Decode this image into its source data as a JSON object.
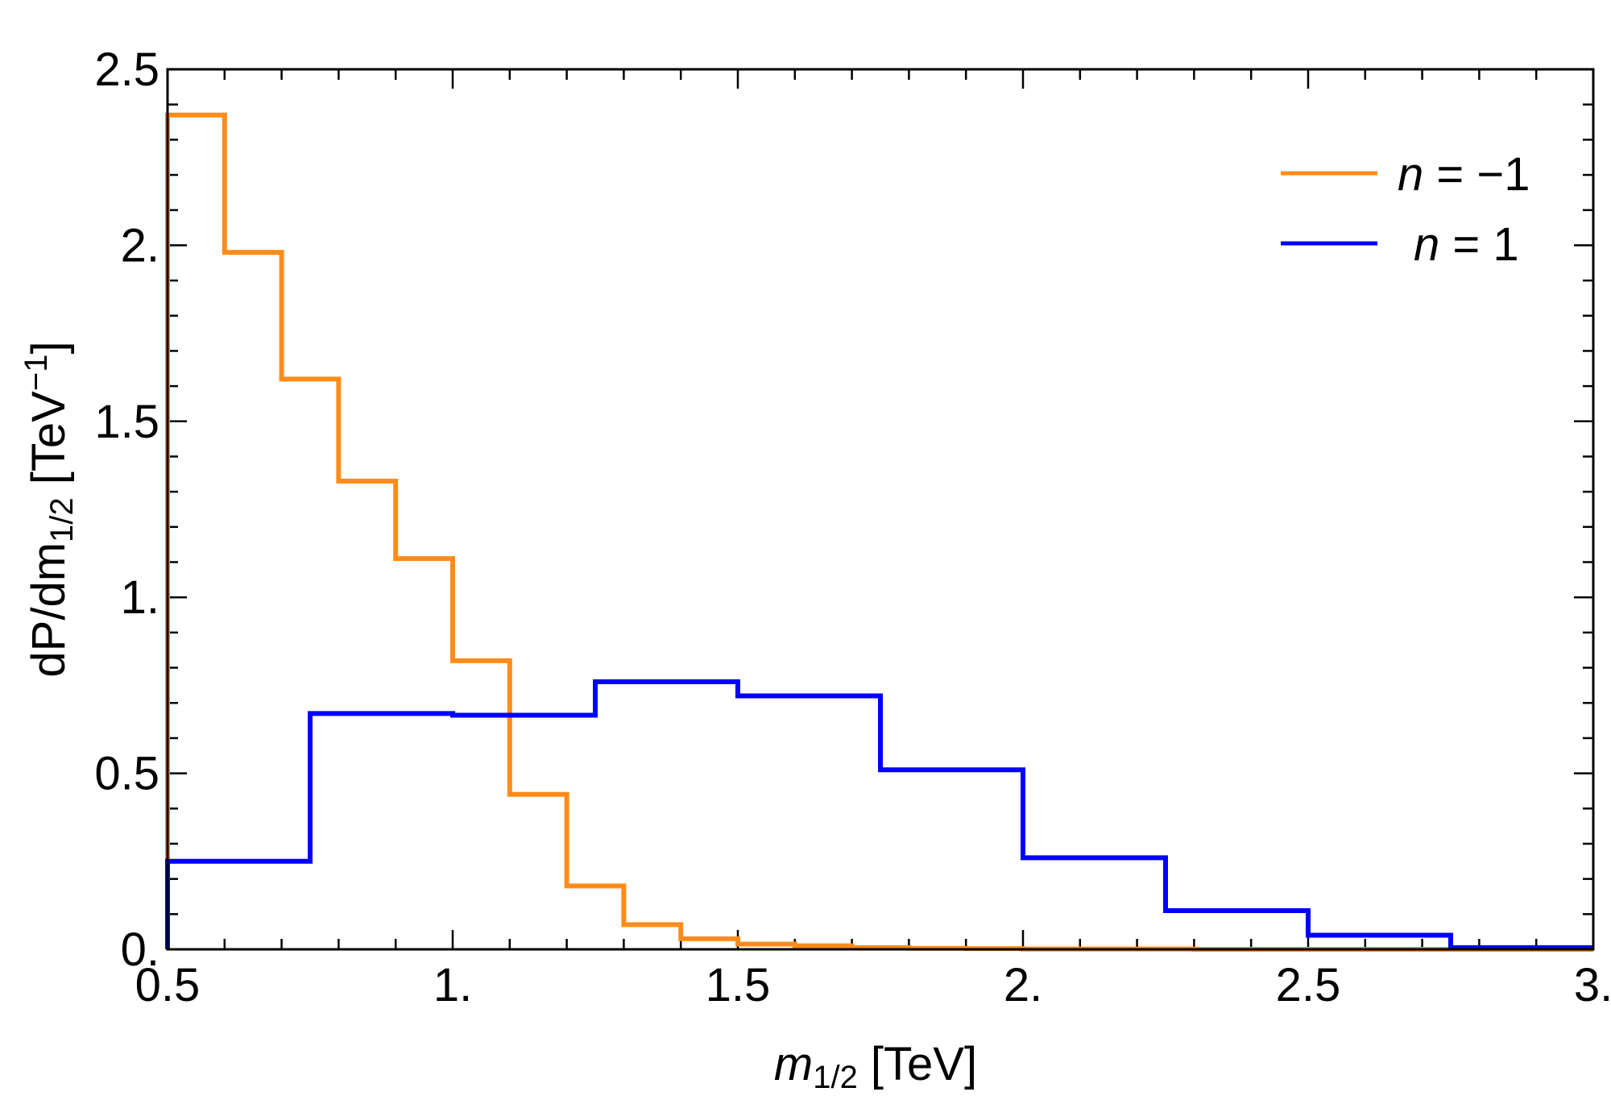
{
  "chart_data": {
    "type": "histogram",
    "xlabel": {
      "main": "m",
      "sub": "1/2",
      "suffix": " [TeV]"
    },
    "ylabel": {
      "prefix": "dP/dm",
      "sub": "1/2",
      "suffix1": " [TeV",
      "sup": "−1",
      "suffix2": "]"
    },
    "xlim": [
      0.5,
      3.0
    ],
    "ylim": [
      0,
      2.5
    ],
    "x_ticks": [
      0.5,
      1.0,
      1.5,
      2.0,
      2.5,
      3.0
    ],
    "x_tick_labels": [
      "0.5",
      "1.",
      "1.5",
      "2.",
      "2.5",
      "3."
    ],
    "y_ticks": [
      0,
      0.5,
      1.0,
      1.5,
      2.0,
      2.5
    ],
    "y_tick_labels": [
      "0.",
      "0.5",
      "1.",
      "1.5",
      "2.",
      "2.5"
    ],
    "legend_position": "top-right",
    "series": [
      {
        "name": "n = −1",
        "legend_var": "n",
        "legend_rest": " = −1",
        "color": "#ff8c1a",
        "bin_edges": [
          0.5,
          0.6,
          0.7,
          0.8,
          0.9,
          1.0,
          1.1,
          1.2,
          1.3,
          1.4,
          1.5,
          1.6,
          1.7,
          1.8,
          1.9,
          2.0,
          2.1,
          2.2,
          2.3,
          2.4,
          2.5,
          2.6,
          2.7,
          2.8,
          2.9,
          3.0
        ],
        "values": [
          2.37,
          1.98,
          1.62,
          1.33,
          1.11,
          0.82,
          0.44,
          0.18,
          0.07,
          0.03,
          0.015,
          0.01,
          0.005,
          0.003,
          0.002,
          0.001,
          0.001,
          0.001,
          0.0,
          0.0,
          0.0,
          0.0,
          0.0,
          0.0,
          0.0
        ]
      },
      {
        "name": "n = 1",
        "legend_var": "n",
        "legend_rest": " = 1",
        "color": "#0000ff",
        "bin_edges": [
          0.5,
          0.75,
          1.0,
          1.25,
          1.5,
          1.75,
          2.0,
          2.25,
          2.5,
          2.75,
          3.0
        ],
        "values": [
          0.25,
          0.67,
          0.665,
          0.76,
          0.72,
          0.51,
          0.26,
          0.11,
          0.04,
          0.005
        ]
      }
    ]
  }
}
